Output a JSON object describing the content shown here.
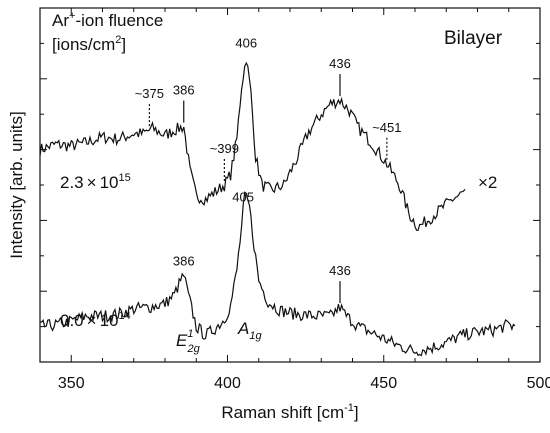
{
  "chart_data": {
    "type": "line",
    "xlabel": "Raman shift [cm",
    "xlabel_sup": "-1",
    "xlabel_end": "]",
    "ylabel": "Intensity [arb. units]",
    "xlim": [
      340,
      500
    ],
    "ylim": [
      0,
      10
    ],
    "xticks": [
      {
        "value": 350,
        "label": "350"
      },
      {
        "value": 400,
        "label": "400"
      },
      {
        "value": 450,
        "label": "450"
      },
      {
        "value": 500,
        "label": "500"
      }
    ],
    "legend_title": {
      "line1_pre": "Ar",
      "line1_sup": "+",
      "line1_post": "-ion fluence",
      "line2_pre": "[ions/cm",
      "line2_sup": "2",
      "line2_post": "]"
    },
    "sample_label": "Bilayer",
    "series": [
      {
        "fluence_label": {
          "mantissa": "2.3",
          "times": "×",
          "base": "10",
          "exponent": "15"
        },
        "multiplier_label": "×2",
        "points": [
          [
            340,
            6.0
          ],
          [
            345,
            6.15
          ],
          [
            350,
            6.1
          ],
          [
            355,
            6.2
          ],
          [
            360,
            6.35
          ],
          [
            365,
            6.3
          ],
          [
            370,
            6.45
          ],
          [
            373,
            6.45
          ],
          [
            376,
            6.6
          ],
          [
            380,
            6.4
          ],
          [
            383,
            6.55
          ],
          [
            386,
            6.65
          ],
          [
            388,
            5.4
          ],
          [
            390,
            4.7
          ],
          [
            393,
            4.6
          ],
          [
            396,
            4.8
          ],
          [
            399,
            5.0
          ],
          [
            401,
            5.3
          ],
          [
            403,
            6.3
          ],
          [
            404.5,
            7.8
          ],
          [
            406,
            8.6
          ],
          [
            407.5,
            7.6
          ],
          [
            409,
            5.8
          ],
          [
            411,
            5.0
          ],
          [
            414,
            4.85
          ],
          [
            418,
            5.0
          ],
          [
            422,
            5.7
          ],
          [
            426,
            6.5
          ],
          [
            430,
            7.0
          ],
          [
            433,
            7.3
          ],
          [
            436,
            7.4
          ],
          [
            439,
            7.1
          ],
          [
            442,
            6.6
          ],
          [
            446,
            6.2
          ],
          [
            451,
            5.6
          ],
          [
            455,
            5.0
          ],
          [
            458,
            4.2
          ],
          [
            461,
            3.8
          ],
          [
            464,
            4.0
          ],
          [
            468,
            4.3
          ],
          [
            472,
            4.6
          ],
          [
            476,
            4.8
          ]
        ],
        "annotations": [
          {
            "x": 375,
            "label": "~375",
            "style": "dotted"
          },
          {
            "x": 386,
            "label": "386",
            "style": "solid"
          },
          {
            "x": 399,
            "label": "~399",
            "style": "dotted"
          },
          {
            "x": 406,
            "label": "406",
            "style": "none"
          },
          {
            "x": 436,
            "label": "436",
            "style": "solid"
          },
          {
            "x": 451,
            "label": "~451",
            "style": "dotted"
          }
        ]
      },
      {
        "fluence_label": {
          "mantissa": "0.0",
          "times": "×",
          "base": "10",
          "exponent": "14"
        },
        "points": [
          [
            340,
            1.0
          ],
          [
            345,
            1.05
          ],
          [
            350,
            1.15
          ],
          [
            355,
            1.3
          ],
          [
            360,
            1.3
          ],
          [
            365,
            1.35
          ],
          [
            370,
            1.5
          ],
          [
            375,
            1.55
          ],
          [
            380,
            1.65
          ],
          [
            383,
            1.9
          ],
          [
            385,
            2.3
          ],
          [
            386,
            2.45
          ],
          [
            388,
            1.7
          ],
          [
            390,
            1.0
          ],
          [
            393,
            0.75
          ],
          [
            396,
            0.95
          ],
          [
            399,
            1.2
          ],
          [
            401,
            1.6
          ],
          [
            403,
            2.6
          ],
          [
            404.5,
            3.8
          ],
          [
            405.5,
            4.7
          ],
          [
            407,
            4.4
          ],
          [
            408.5,
            3.3
          ],
          [
            410,
            2.3
          ],
          [
            413,
            1.7
          ],
          [
            417,
            1.45
          ],
          [
            422,
            1.35
          ],
          [
            428,
            1.3
          ],
          [
            433,
            1.3
          ],
          [
            436,
            1.55
          ],
          [
            438,
            1.3
          ],
          [
            442,
            1.0
          ],
          [
            448,
            0.75
          ],
          [
            455,
            0.45
          ],
          [
            460,
            0.3
          ],
          [
            465,
            0.4
          ],
          [
            470,
            0.55
          ],
          [
            475,
            0.75
          ],
          [
            480,
            0.85
          ],
          [
            485,
            0.9
          ],
          [
            490,
            1.05
          ],
          [
            492,
            1.0
          ]
        ],
        "annotations": [
          {
            "x": 386,
            "label": "386",
            "style": "none"
          },
          {
            "x": 405,
            "label": "405",
            "style": "none"
          },
          {
            "x": 436,
            "label": "436",
            "style": "solid"
          }
        ]
      }
    ],
    "mode_labels": [
      {
        "main": "E",
        "sup": "1",
        "sub": "2g",
        "x": 386
      },
      {
        "main": "A",
        "sub": "1g",
        "x": 406
      }
    ]
  }
}
